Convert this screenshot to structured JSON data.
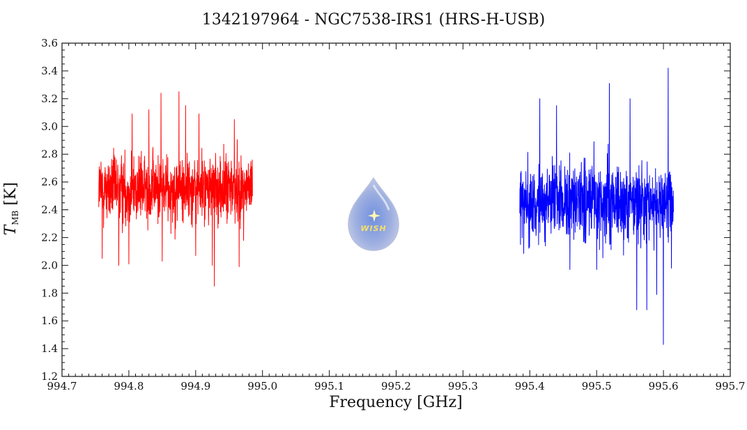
{
  "chart_data": {
    "type": "line",
    "title": "1342197964 - NGC7538-IRS1 (HRS-H-USB)",
    "xlabel": "Frequency [GHz]",
    "ylabel": {
      "main": "T",
      "sub": "MB",
      "unit": "[K]"
    },
    "xlim": [
      994.7,
      995.7
    ],
    "ylim": [
      1.2,
      3.6
    ],
    "xticks": [
      "994.7",
      "994.8",
      "994.9",
      "995.0",
      "995.1",
      "995.2",
      "995.3",
      "995.4",
      "995.5",
      "995.6",
      "995.7"
    ],
    "yticks": [
      "1.2",
      "1.4",
      "1.6",
      "1.8",
      "2.0",
      "2.2",
      "2.4",
      "2.6",
      "2.8",
      "3.0",
      "3.2",
      "3.4",
      "3.6"
    ],
    "series": [
      {
        "color": "#ff0000",
        "x_range": [
          994.755,
          994.985
        ],
        "mean": 2.55,
        "std": 0.22,
        "min": 1.85,
        "max": 3.25,
        "peaks": [
          [
            994.805,
            3.09
          ],
          [
            994.83,
            3.12
          ],
          [
            994.848,
            3.24
          ],
          [
            994.875,
            3.25
          ],
          [
            994.885,
            3.15
          ],
          [
            994.905,
            3.09
          ],
          [
            994.958,
            3.05
          ]
        ],
        "dips": [
          [
            994.76,
            2.05
          ],
          [
            994.785,
            2.0
          ],
          [
            994.8,
            2.01
          ],
          [
            994.85,
            2.03
          ],
          [
            994.9,
            2.07
          ],
          [
            994.925,
            2.0
          ],
          [
            994.928,
            1.85
          ],
          [
            994.965,
            1.99
          ]
        ]
      },
      {
        "color": "#0000ff",
        "x_range": [
          995.385,
          995.615
        ],
        "mean": 2.45,
        "std": 0.25,
        "min": 1.43,
        "max": 3.42,
        "peaks": [
          [
            995.38,
            3.05
          ],
          [
            995.415,
            3.2
          ],
          [
            995.44,
            3.15
          ],
          [
            995.5,
            3.1
          ],
          [
            995.519,
            3.31
          ],
          [
            995.55,
            3.2
          ],
          [
            995.6,
            3.26
          ],
          [
            995.607,
            3.42
          ]
        ],
        "dips": [
          [
            995.386,
            2.15
          ],
          [
            995.46,
            1.97
          ],
          [
            995.5,
            1.97
          ],
          [
            995.56,
            1.68
          ],
          [
            995.575,
            1.68
          ],
          [
            995.59,
            1.79
          ],
          [
            995.6,
            1.43
          ],
          [
            995.612,
            1.98
          ]
        ]
      }
    ],
    "grid": false,
    "legend": "none"
  },
  "logo": {
    "text": "WISH"
  }
}
